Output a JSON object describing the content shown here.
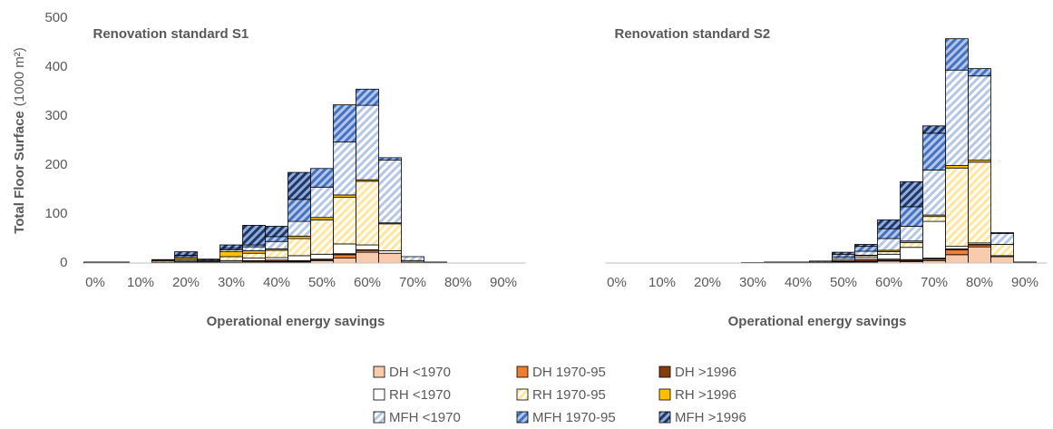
{
  "chart_data": [
    {
      "type": "bar",
      "stacked": true,
      "title": "Renovation standard S1",
      "y_label": "Total Floor Surface",
      "y_unit": "(1000 m²)",
      "x_label": "Operational energy savings",
      "categories": [
        "0%",
        null,
        "10%",
        null,
        "20%",
        null,
        "30%",
        null,
        "40%",
        null,
        "50%",
        null,
        "60%",
        null,
        "70%",
        null,
        "80%",
        null,
        "90%"
      ],
      "ylim": [
        0,
        500
      ],
      "yticks": [
        0,
        100,
        200,
        300,
        400,
        500
      ],
      "grid": false,
      "series": [
        {
          "name": "DH <1970",
          "color": "#f8cbad",
          "values": [
            1,
            0,
            0,
            1,
            2,
            1,
            0,
            2,
            2,
            2,
            5,
            10,
            22,
            20,
            2,
            1,
            0,
            0,
            0
          ]
        },
        {
          "name": "DH 1970-95",
          "color": "#ed7d31",
          "values": [
            0,
            0,
            0,
            0,
            0,
            0,
            0,
            0,
            1,
            1,
            2,
            7,
            4,
            0,
            0,
            0,
            0,
            0,
            0
          ]
        },
        {
          "name": "DH >1996",
          "color": "#843c0c",
          "values": [
            0,
            0,
            0,
            0,
            0,
            0,
            2,
            3,
            3,
            2,
            1,
            2,
            1,
            0,
            0,
            0,
            0,
            0,
            0
          ]
        },
        {
          "name": "RH <1970",
          "color": "#ffffff",
          "values": [
            0,
            0,
            0,
            0,
            2,
            0,
            3,
            5,
            5,
            10,
            10,
            20,
            10,
            5,
            0,
            1,
            0,
            0,
            0
          ]
        },
        {
          "name": "RH 1970-95",
          "color": "#ffffff",
          "hatch": "#ffe699",
          "values": [
            0,
            1,
            0,
            3,
            3,
            2,
            8,
            10,
            15,
            35,
            70,
            95,
            130,
            55,
            3,
            0,
            0,
            0,
            0
          ]
        },
        {
          "name": "RH >1996",
          "color": "#ffc000",
          "values": [
            0,
            0,
            0,
            2,
            3,
            1,
            10,
            5,
            3,
            5,
            5,
            5,
            3,
            2,
            0,
            0,
            0,
            0,
            0
          ]
        },
        {
          "name": "MFH <1970",
          "color": "#ffffff",
          "hatch": "#b4c7e7",
          "values": [
            1,
            1,
            0,
            1,
            3,
            2,
            4,
            8,
            15,
            30,
            62,
            108,
            152,
            128,
            8,
            0,
            0,
            0,
            0
          ]
        },
        {
          "name": "MFH 1970-95",
          "color": "#b4c7e7",
          "hatch": "#4472c4",
          "values": [
            0,
            0,
            0,
            0,
            3,
            0,
            3,
            4,
            10,
            45,
            38,
            76,
            33,
            5,
            0,
            0,
            0,
            0,
            0
          ]
        },
        {
          "name": "MFH >1996",
          "color": "#8faadc",
          "hatch": "#203864",
          "values": [
            0,
            0,
            0,
            0,
            7,
            2,
            7,
            40,
            21,
            55,
            0,
            0,
            0,
            0,
            0,
            0,
            0,
            0,
            0
          ]
        }
      ]
    },
    {
      "type": "bar",
      "stacked": true,
      "title": "Renovation standard S2",
      "x_label": "Operational energy savings",
      "categories": [
        "0%",
        null,
        "10%",
        null,
        "20%",
        null,
        "30%",
        null,
        "40%",
        null,
        "50%",
        null,
        "60%",
        null,
        "70%",
        null,
        "80%",
        null,
        "90%"
      ],
      "ylim": [
        0,
        500
      ],
      "grid": false,
      "series": [
        {
          "values": [
            0,
            0,
            0,
            0,
            0,
            0,
            0,
            0,
            0,
            1,
            1,
            2,
            4,
            3,
            5,
            17,
            33,
            13,
            1
          ]
        },
        {
          "values": [
            0,
            0,
            0,
            0,
            0,
            0,
            0,
            0,
            0,
            0,
            0,
            1,
            1,
            1,
            3,
            10,
            4,
            0,
            0
          ]
        },
        {
          "values": [
            0,
            0,
            0,
            0,
            0,
            0,
            0,
            0,
            0,
            0,
            2,
            4,
            3,
            3,
            2,
            2,
            1,
            0,
            0
          ]
        },
        {
          "values": [
            0,
            0,
            0,
            0,
            0,
            0,
            0,
            0,
            0,
            0,
            2,
            4,
            10,
            25,
            75,
            5,
            3,
            2,
            0
          ]
        },
        {
          "values": [
            0,
            0,
            0,
            0,
            0,
            0,
            0,
            1,
            1,
            1,
            3,
            4,
            5,
            10,
            10,
            160,
            165,
            23,
            0
          ]
        },
        {
          "values": [
            0,
            0,
            0,
            0,
            0,
            0,
            0,
            0,
            0,
            0,
            0,
            1,
            3,
            3,
            3,
            5,
            4,
            0,
            0
          ]
        },
        {
          "values": [
            0,
            0,
            0,
            0,
            0,
            0,
            1,
            1,
            1,
            2,
            4,
            8,
            24,
            30,
            92,
            195,
            172,
            22,
            1
          ]
        },
        {
          "values": [
            0,
            0,
            0,
            0,
            0,
            0,
            0,
            0,
            0,
            0,
            6,
            10,
            20,
            40,
            75,
            64,
            15,
            2,
            0
          ]
        },
        {
          "values": [
            0,
            0,
            0,
            0,
            0,
            0,
            0,
            0,
            0,
            0,
            4,
            4,
            18,
            51,
            15,
            0,
            0,
            0,
            0
          ]
        }
      ]
    }
  ]
}
